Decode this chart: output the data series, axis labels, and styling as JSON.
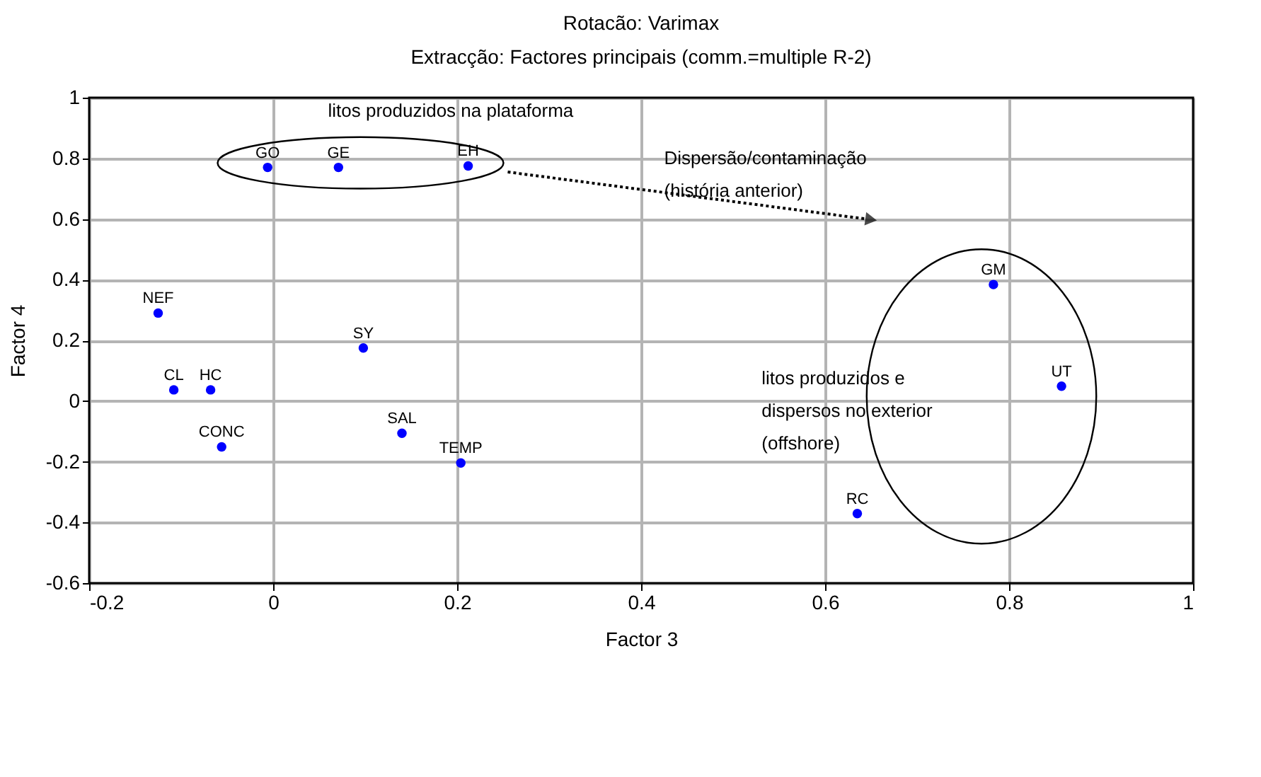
{
  "chart_data": {
    "type": "scatter",
    "title": "Rotacão: Varimax",
    "subtitle": "Extracção: Factores principais (comm.=multiple R-2)",
    "xlabel": "Factor 3",
    "ylabel": "Factor 4",
    "series": [
      {
        "color": "#0000ff",
        "x": [
          -0.006,
          0.071,
          0.212,
          -0.125,
          0.098,
          -0.108,
          -0.068,
          -0.056,
          0.14,
          0.204,
          0.783,
          0.857,
          0.635
        ],
        "values": [
          0.77,
          0.77,
          0.775,
          0.29,
          0.175,
          0.037,
          0.037,
          -0.151,
          -0.106,
          -0.204,
          0.384,
          0.049,
          -0.371
        ]
      }
    ],
    "annotations": [
      {
        "text": "GO",
        "x": -0.006,
        "y": 0.77
      },
      {
        "text": "GE",
        "x": 0.071,
        "y": 0.77
      },
      {
        "text": "EH",
        "x": 0.212,
        "y": 0.775
      },
      {
        "text": "NEF",
        "x": -0.125,
        "y": 0.29
      },
      {
        "text": "SY",
        "x": 0.098,
        "y": 0.175
      },
      {
        "text": "CL",
        "x": -0.108,
        "y": 0.037
      },
      {
        "text": "HC",
        "x": -0.068,
        "y": 0.037
      },
      {
        "text": "CONC",
        "x": -0.056,
        "y": -0.151
      },
      {
        "text": "SAL",
        "x": 0.14,
        "y": -0.106
      },
      {
        "text": "TEMP",
        "x": 0.204,
        "y": -0.204
      },
      {
        "text": "GM",
        "x": 0.783,
        "y": 0.384
      },
      {
        "text": "UT",
        "x": 0.857,
        "y": 0.049
      },
      {
        "text": "RC",
        "x": 0.635,
        "y": -0.371
      },
      "litos produzidos na plataforma",
      "Dispersão/contaminação\n(história anterior)",
      "litos produzidos e\ndispersos no exterior\n(offshore)"
    ],
    "xlim": [
      -0.2,
      1.0
    ],
    "ylim": [
      -0.6,
      1.0
    ],
    "xticks": [
      -0.2,
      0,
      0.2,
      0.4,
      0.6,
      0.8,
      1
    ],
    "yticks": [
      -0.6,
      -0.4,
      -0.2,
      0,
      0.2,
      0.4,
      0.6,
      0.8,
      1
    ],
    "grid": true,
    "marker": "circle"
  }
}
